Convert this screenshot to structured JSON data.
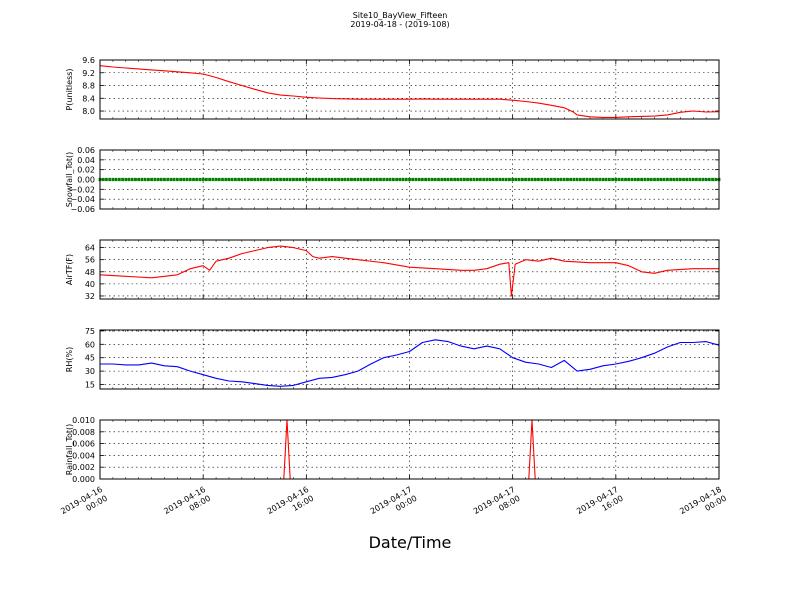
{
  "figure": {
    "title": "Site10_BayView_Fifteen",
    "subtitle": "2019-04-18 - (2019-108)",
    "xlabel": "Date/Time"
  },
  "chart_data": [
    {
      "type": "line",
      "ylabel": "P(unitless)",
      "color": "#ff0000",
      "ylim": [
        7.75,
        9.6
      ],
      "yticks": [
        8.0,
        8.4,
        8.8,
        9.2,
        9.6
      ],
      "ytick_labels": [
        "8.0",
        "8.4",
        "8.8",
        "9.2",
        "9.6"
      ],
      "xlim_hours": [
        0,
        48
      ],
      "x_hours": [
        0,
        1,
        2,
        3,
        4,
        5,
        6,
        7,
        8,
        9,
        10,
        11,
        12,
        13,
        14,
        15,
        16,
        17,
        18,
        20,
        22,
        24,
        25,
        26,
        28,
        30,
        31,
        32,
        33,
        34,
        35,
        36,
        36.7,
        37,
        38,
        39,
        40,
        41,
        42,
        43,
        44,
        45,
        46,
        47,
        48
      ],
      "values": [
        9.42,
        9.38,
        9.35,
        9.32,
        9.29,
        9.26,
        9.23,
        9.2,
        9.16,
        9.05,
        8.92,
        8.8,
        8.68,
        8.57,
        8.5,
        8.47,
        8.43,
        8.41,
        8.39,
        8.37,
        8.37,
        8.37,
        8.38,
        8.37,
        8.37,
        8.37,
        8.37,
        8.34,
        8.3,
        8.25,
        8.18,
        8.1,
        7.97,
        7.88,
        7.82,
        7.8,
        7.8,
        7.82,
        7.83,
        7.84,
        7.88,
        7.96,
        8.0,
        7.97,
        7.98
      ],
      "grid": true
    },
    {
      "type": "scatter",
      "ylabel": "Snowfall_Tot()",
      "color": "#008000",
      "ylim": [
        -0.06,
        0.06
      ],
      "yticks": [
        -0.06,
        -0.04,
        -0.02,
        0.0,
        0.02,
        0.04,
        0.06
      ],
      "ytick_labels": [
        "−0.06",
        "−0.04",
        "−0.02",
        "0.00",
        "0.02",
        "0.04",
        "0.06"
      ],
      "xlim_hours": [
        0,
        48
      ],
      "constant_value": 0.0,
      "interval_hours": 0.25,
      "grid": true
    },
    {
      "type": "line",
      "ylabel": "AirTF(F)",
      "color": "#ff0000",
      "ylim": [
        30,
        69
      ],
      "yticks": [
        32,
        40,
        48,
        56,
        64
      ],
      "ytick_labels": [
        "32",
        "40",
        "48",
        "56",
        "64"
      ],
      "xlim_hours": [
        0,
        48
      ],
      "x_hours": [
        0,
        2,
        4,
        6,
        7,
        8,
        8.5,
        9,
        10,
        11,
        12,
        13,
        14,
        15,
        16,
        16.5,
        17,
        18,
        19,
        20,
        22,
        24,
        26,
        28,
        29,
        30,
        31,
        31.7,
        31.9,
        32.2,
        33,
        34,
        35,
        36,
        38,
        40,
        41,
        41.5,
        42,
        43,
        44,
        46,
        48
      ],
      "values": [
        46,
        45,
        44,
        46,
        50,
        52,
        49,
        55,
        57,
        60,
        62,
        64,
        65,
        64,
        62,
        58,
        57,
        58,
        57,
        56,
        54,
        51,
        50,
        49,
        49,
        50,
        53,
        54,
        32,
        53,
        56,
        55,
        57,
        55,
        54,
        54,
        52,
        50,
        48,
        47,
        49,
        50,
        50
      ],
      "grid": true
    },
    {
      "type": "line",
      "ylabel": "RH(%)",
      "color": "#0000ff",
      "ylim": [
        10,
        76
      ],
      "yticks": [
        15,
        30,
        45,
        60,
        75
      ],
      "ytick_labels": [
        "15",
        "30",
        "45",
        "60",
        "75"
      ],
      "xlim_hours": [
        0,
        48
      ],
      "x_hours": [
        0,
        1,
        2,
        3,
        4,
        5,
        6,
        7,
        8,
        9,
        10,
        11,
        12,
        13,
        14,
        15,
        16,
        17,
        18,
        19,
        20,
        21,
        22,
        23,
        24,
        25,
        26,
        27,
        28,
        29,
        30,
        31,
        32,
        33,
        34,
        35,
        36,
        37,
        38,
        39,
        40,
        41,
        42,
        43,
        44,
        45,
        46,
        47,
        48
      ],
      "values": [
        38,
        38,
        37,
        37,
        39,
        36,
        35,
        30,
        26,
        22,
        19,
        18,
        16,
        14,
        13,
        14,
        18,
        22,
        23,
        26,
        30,
        38,
        45,
        48,
        52,
        62,
        65,
        63,
        58,
        55,
        58,
        55,
        45,
        40,
        38,
        34,
        42,
        30,
        32,
        36,
        38,
        41,
        45,
        50,
        57,
        62,
        62,
        63,
        59
      ],
      "grid": true
    },
    {
      "type": "line",
      "ylabel": "Rainfall_Tot()",
      "color": "#ff0000",
      "ylim": [
        0,
        0.01
      ],
      "yticks": [
        0.0,
        0.002,
        0.004,
        0.006,
        0.008,
        0.01
      ],
      "ytick_labels": [
        "0.000",
        "0.002",
        "0.004",
        "0.006",
        "0.008",
        "0.010"
      ],
      "xlim_hours": [
        0,
        48
      ],
      "x_hours": [
        0,
        14.25,
        14.5,
        14.75,
        48
      ],
      "values": [
        0,
        0,
        0.01,
        0,
        0
      ],
      "x_hours_2": [
        33,
        33.25,
        33.5,
        33.75,
        48
      ],
      "values_2": [
        0,
        0,
        0.01,
        0,
        0
      ],
      "grid": true
    }
  ],
  "x_axis": {
    "tick_hours": [
      0,
      8,
      16,
      24,
      32,
      40,
      48
    ],
    "tick_labels": [
      [
        "2019-04-16",
        "00:00"
      ],
      [
        "2019-04-16",
        "08:00"
      ],
      [
        "2019-04-16",
        "16:00"
      ],
      [
        "2019-04-17",
        "00:00"
      ],
      [
        "2019-04-17",
        "08:00"
      ],
      [
        "2019-04-17",
        "16:00"
      ],
      [
        "2019-04-18",
        "00:00"
      ]
    ]
  }
}
